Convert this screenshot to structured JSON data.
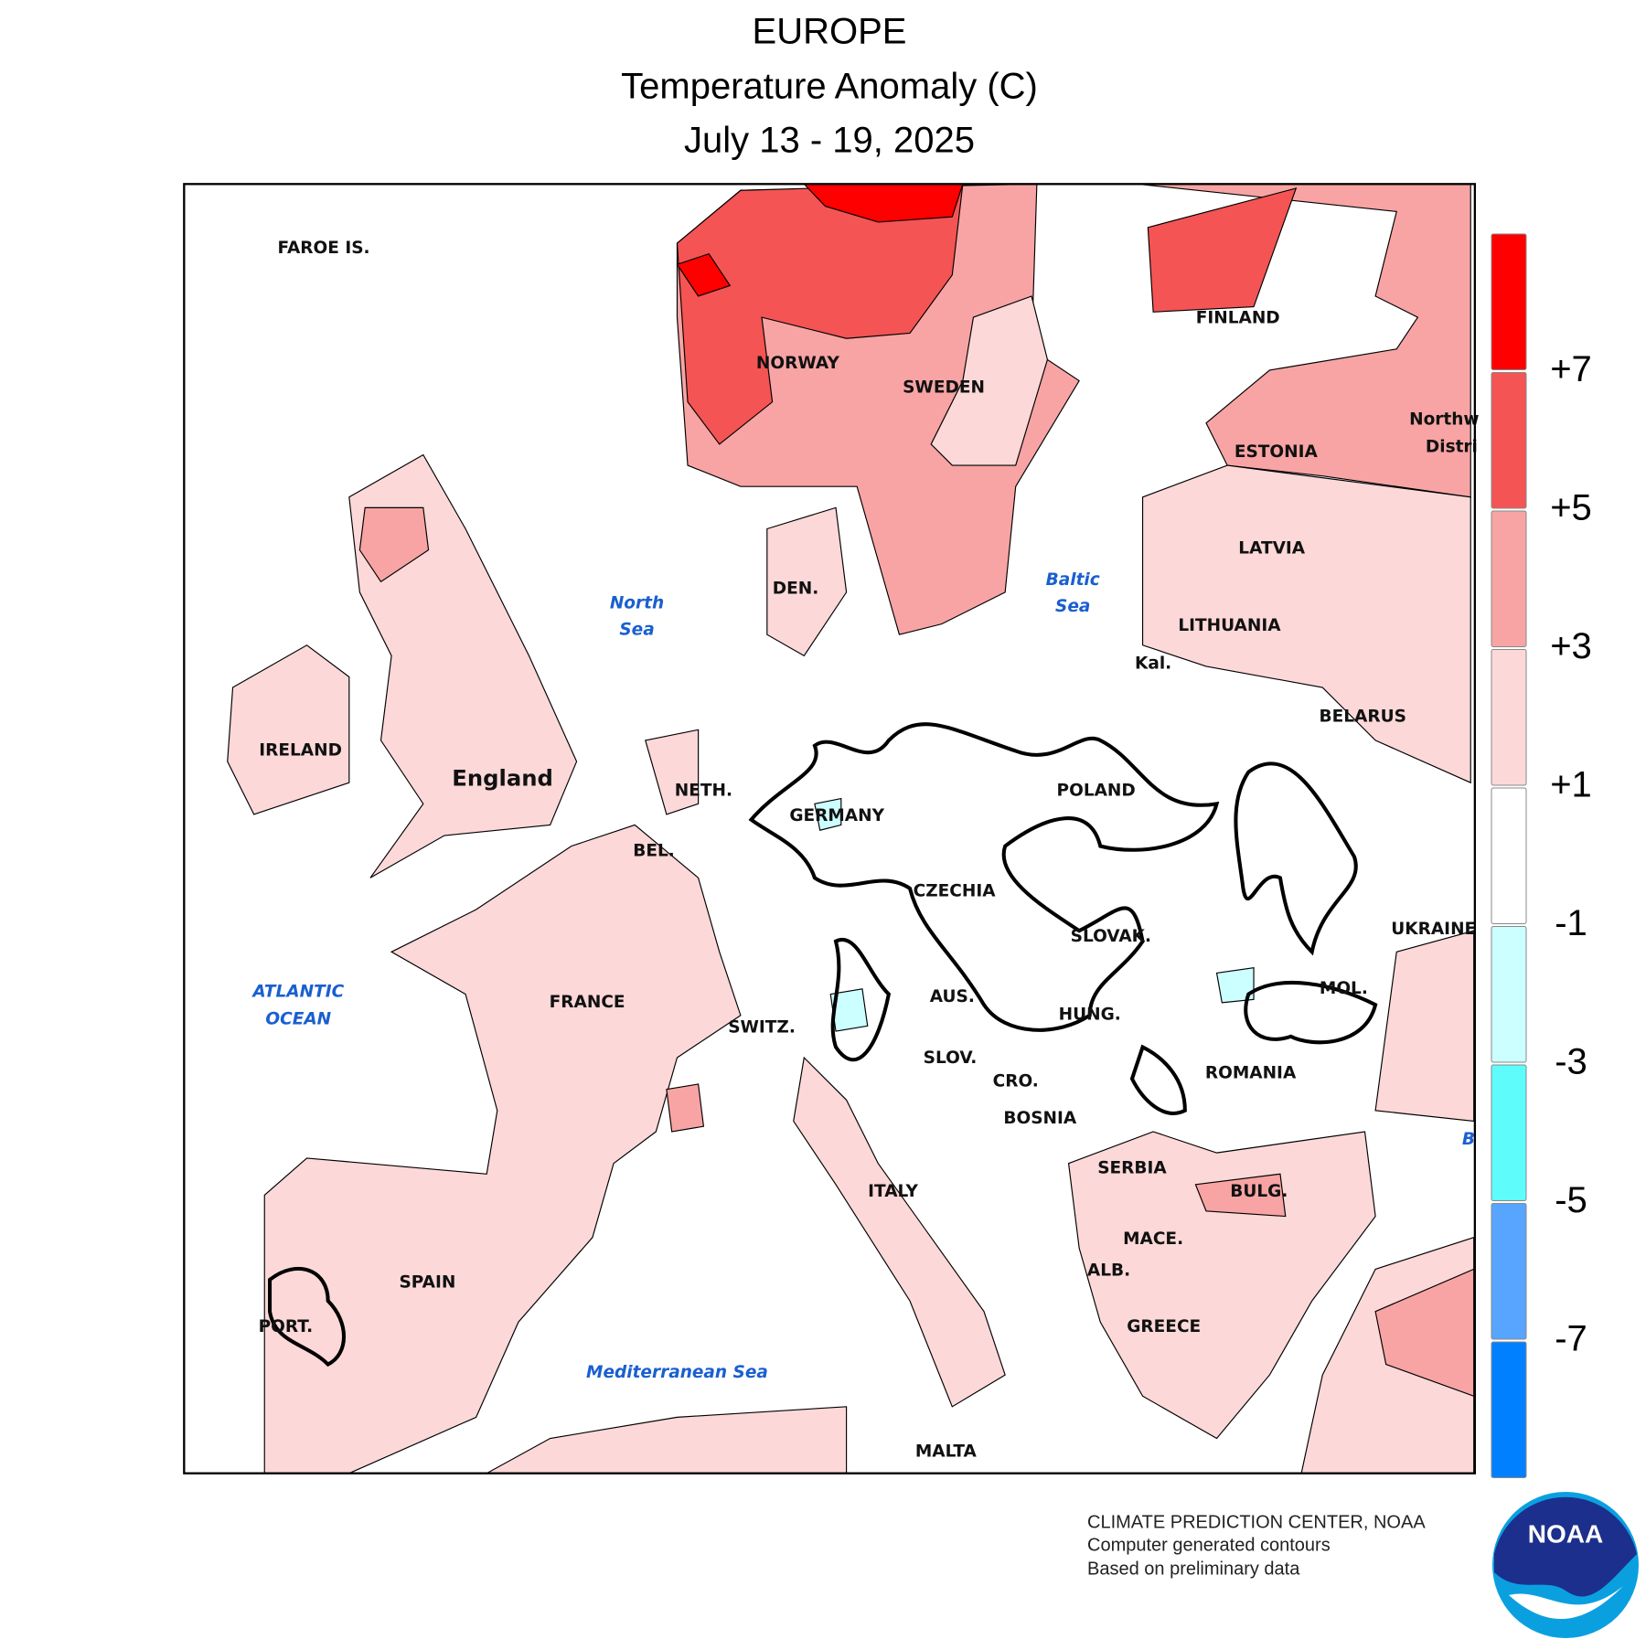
{
  "header": {
    "title": "EUROPE",
    "subtitle": "Temperature Anomaly (C)",
    "dates": "July 13 - 19, 2025"
  },
  "map": {
    "labels": [
      "FAROE IS.",
      "NORWAY",
      "SWEDEN",
      "FINLAND",
      "Northw",
      "Distri",
      "ESTONIA",
      "LATVIA",
      "LITHUANIA",
      "Kal.",
      "BELARUS",
      "DEN.",
      "North",
      "Sea",
      "Baltic",
      "Sea",
      "IRELAND",
      "England",
      "NETH.",
      "GERMANY",
      "POLAND",
      "BEL.",
      "CZECHIA",
      "SLOVAK.",
      "UKRAINE",
      "ATLANTIC",
      "OCEAN",
      "FRANCE",
      "AUS.",
      "HUNG.",
      "MOL.",
      "SWITZ.",
      "SLOV.",
      "CRO.",
      "ROMANIA",
      "BOSNIA",
      "SERBIA",
      "B",
      "BULG.",
      "ITALY",
      "MACE.",
      "ALB.",
      "SPAIN",
      "PORT.",
      "GREECE",
      "Mediterranean Sea",
      "MALTA"
    ]
  },
  "legend": {
    "colors": [
      "#ff0000",
      "#f45454",
      "#f8a4a4",
      "#fcd8d8",
      "#ffffff",
      "#ccffff",
      "#5ffcfc",
      "#57a5ff",
      "#0080ff"
    ],
    "labels": [
      "+7",
      "+5",
      "+3",
      "+1",
      "-1",
      "-3",
      "-5",
      "-7"
    ]
  },
  "footer": {
    "lines": [
      "CLIMATE PREDICTION CENTER, NOAA",
      "Computer generated contours",
      "Based on preliminary data"
    ]
  },
  "logo": {
    "text": "NOAA"
  }
}
